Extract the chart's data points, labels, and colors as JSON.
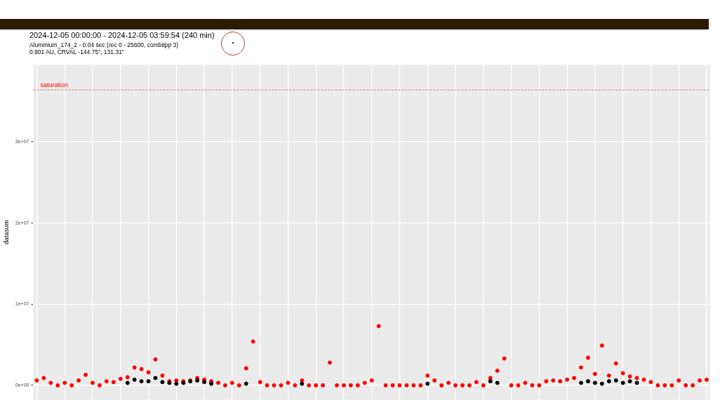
{
  "chart_data": {
    "type": "scatter",
    "title": "2024-12-05 00:00:00 - 2024-12-05 03:59:54 (240 min)",
    "subtitle": "Aluminium_174_2 - 0.04 sec (rec 0 - 25600, combitpp 3)",
    "annotations": [
      "0.901 AU, CRVAL -144.75\", 131.31\""
    ],
    "ylabel": "datasum",
    "categories": [
      null,
      null,
      null,
      null,
      null,
      null,
      null,
      null,
      null,
      null,
      null,
      null,
      null,
      null,
      null,
      null,
      null,
      null,
      null,
      null,
      null,
      null,
      null,
      null,
      null,
      null,
      null,
      null,
      null,
      null,
      null,
      null,
      null,
      null,
      null,
      null,
      null,
      null,
      null,
      null,
      null,
      null,
      null,
      null,
      null,
      null,
      null,
      null,
      null,
      null,
      null,
      null,
      null,
      null,
      null,
      null,
      null,
      null,
      null,
      null,
      null,
      null,
      null,
      null,
      null,
      null,
      null,
      null,
      null,
      null,
      null,
      null,
      null,
      null,
      null,
      null,
      null,
      null,
      null,
      null,
      null,
      null,
      null,
      null,
      null,
      null,
      null,
      null,
      null,
      null,
      null,
      null,
      null,
      null,
      null,
      null,
      null
    ],
    "series": [
      {
        "color": "#000000",
        "values": [
          null,
          null,
          null,
          null,
          null,
          null,
          null,
          null,
          null,
          null,
          null,
          null,
          null,
          300000,
          700000,
          500000,
          500000,
          900000,
          400000,
          300000,
          200000,
          300000,
          500000,
          600000,
          400000,
          200000,
          null,
          null,
          null,
          null,
          200000,
          null,
          null,
          null,
          null,
          null,
          null,
          null,
          200000,
          null,
          null,
          null,
          null,
          null,
          null,
          null,
          null,
          null,
          null,
          null,
          null,
          null,
          null,
          null,
          null,
          null,
          200000,
          null,
          null,
          null,
          null,
          null,
          null,
          null,
          null,
          500000,
          300000,
          null,
          null,
          null,
          null,
          null,
          null,
          null,
          null,
          null,
          null,
          null,
          300000,
          500000,
          300000,
          200000,
          500000,
          600000,
          300000,
          500000,
          300000,
          null,
          null,
          null,
          null,
          null,
          null,
          null,
          null,
          null,
          null
        ]
      },
      {
        "color": "#ff0000",
        "values": [
          600000,
          900000,
          300000,
          0,
          300000,
          0,
          600000,
          1300000,
          300000,
          0,
          500000,
          400000,
          800000,
          1000000,
          2200000,
          2000000,
          1600000,
          3200000,
          1200000,
          500000,
          600000,
          500000,
          600000,
          900000,
          700000,
          500000,
          300000,
          0,
          300000,
          0,
          2100000,
          5400000,
          400000,
          0,
          0,
          0,
          300000,
          0,
          600000,
          0,
          0,
          0,
          2800000,
          0,
          0,
          0,
          0,
          300000,
          600000,
          7300000,
          0,
          0,
          0,
          0,
          0,
          0,
          1200000,
          600000,
          0,
          300000,
          0,
          0,
          0,
          400000,
          0,
          900000,
          1800000,
          3300000,
          0,
          0,
          300000,
          0,
          0,
          500000,
          600000,
          500000,
          700000,
          900000,
          2200000,
          3400000,
          1400000,
          4900000,
          1200000,
          2700000,
          1500000,
          1100000,
          900000,
          700000,
          400000,
          0,
          0,
          0,
          600000,
          0,
          0,
          600000,
          700000
        ]
      }
    ],
    "ylim": [
      -1800000,
      39500000
    ],
    "yticks": [
      {
        "value": 0,
        "label": "0e+00"
      },
      {
        "value": 10000000,
        "label": "1e+07"
      },
      {
        "value": 20000000,
        "label": "2e+07"
      },
      {
        "value": 30000000,
        "label": "3e+07"
      }
    ],
    "ref_lines": [
      {
        "axis": "y",
        "value": 36400000,
        "label": "saturation",
        "color": "#b06060",
        "line_style": "dashed"
      }
    ],
    "tick_labels": "y",
    "grid": true,
    "marker": "circle",
    "legend": false
  }
}
